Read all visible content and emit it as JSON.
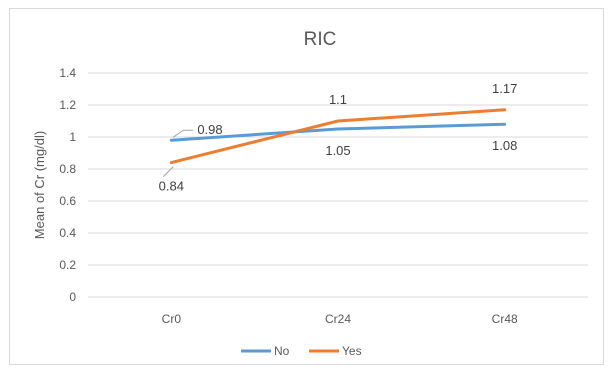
{
  "chart_data": {
    "type": "line",
    "title": "RIC",
    "xlabel": "",
    "ylabel": "Mean of Cr (mg/dl)",
    "categories": [
      "Cr0",
      "Cr24",
      "Cr48"
    ],
    "ylim": [
      0,
      1.4
    ],
    "yticks": [
      "0",
      "0.2",
      "0.4",
      "0.6",
      "0.8",
      "1",
      "1.2",
      "1.4"
    ],
    "grid": true,
    "legend": "bottom",
    "series": [
      {
        "name": "No",
        "values": [
          0.98,
          1.05,
          1.08
        ],
        "labels": [
          "0.98",
          "1.05",
          "1.08"
        ],
        "color": "#5b9bd5"
      },
      {
        "name": "Yes",
        "values": [
          0.84,
          1.1,
          1.17
        ],
        "labels": [
          "0.84",
          "1.1",
          "1.17"
        ],
        "color": "#ed7d31"
      }
    ]
  }
}
